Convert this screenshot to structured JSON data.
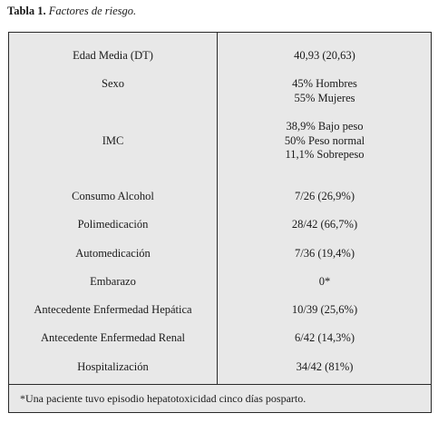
{
  "caption": {
    "number": "Tabla 1.",
    "title": "Factores de riesgo."
  },
  "rows": [
    {
      "label": "Edad Media (DT)",
      "values": [
        "40,93 (20,63)"
      ]
    },
    {
      "label": "Sexo",
      "values": [
        "45% Hombres",
        "55% Mujeres"
      ]
    },
    {
      "label": "IMC",
      "values": [
        "38,9% Bajo peso",
        "50% Peso normal",
        "11,1% Sobrepeso"
      ]
    },
    {
      "label": "Consumo Alcohol",
      "values": [
        "7/26 (26,9%)"
      ]
    },
    {
      "label": "Polimedicación",
      "values": [
        "28/42 (66,7%)"
      ]
    },
    {
      "label": "Automedicación",
      "values": [
        "7/36 (19,4%)"
      ]
    },
    {
      "label": "Embarazo",
      "values": [
        "0*"
      ]
    },
    {
      "label": "Antecedente Enfermedad Hepática",
      "values": [
        "10/39 (25,6%)"
      ]
    },
    {
      "label": "Antecedente Enfermedad Renal",
      "values": [
        "6/42 (14,3%)"
      ]
    },
    {
      "label": "Hospitalización",
      "values": [
        "34/42 (81%)"
      ]
    }
  ],
  "footnote": "*Una paciente tuvo episodio hepatotoxicidad cinco días posparto."
}
